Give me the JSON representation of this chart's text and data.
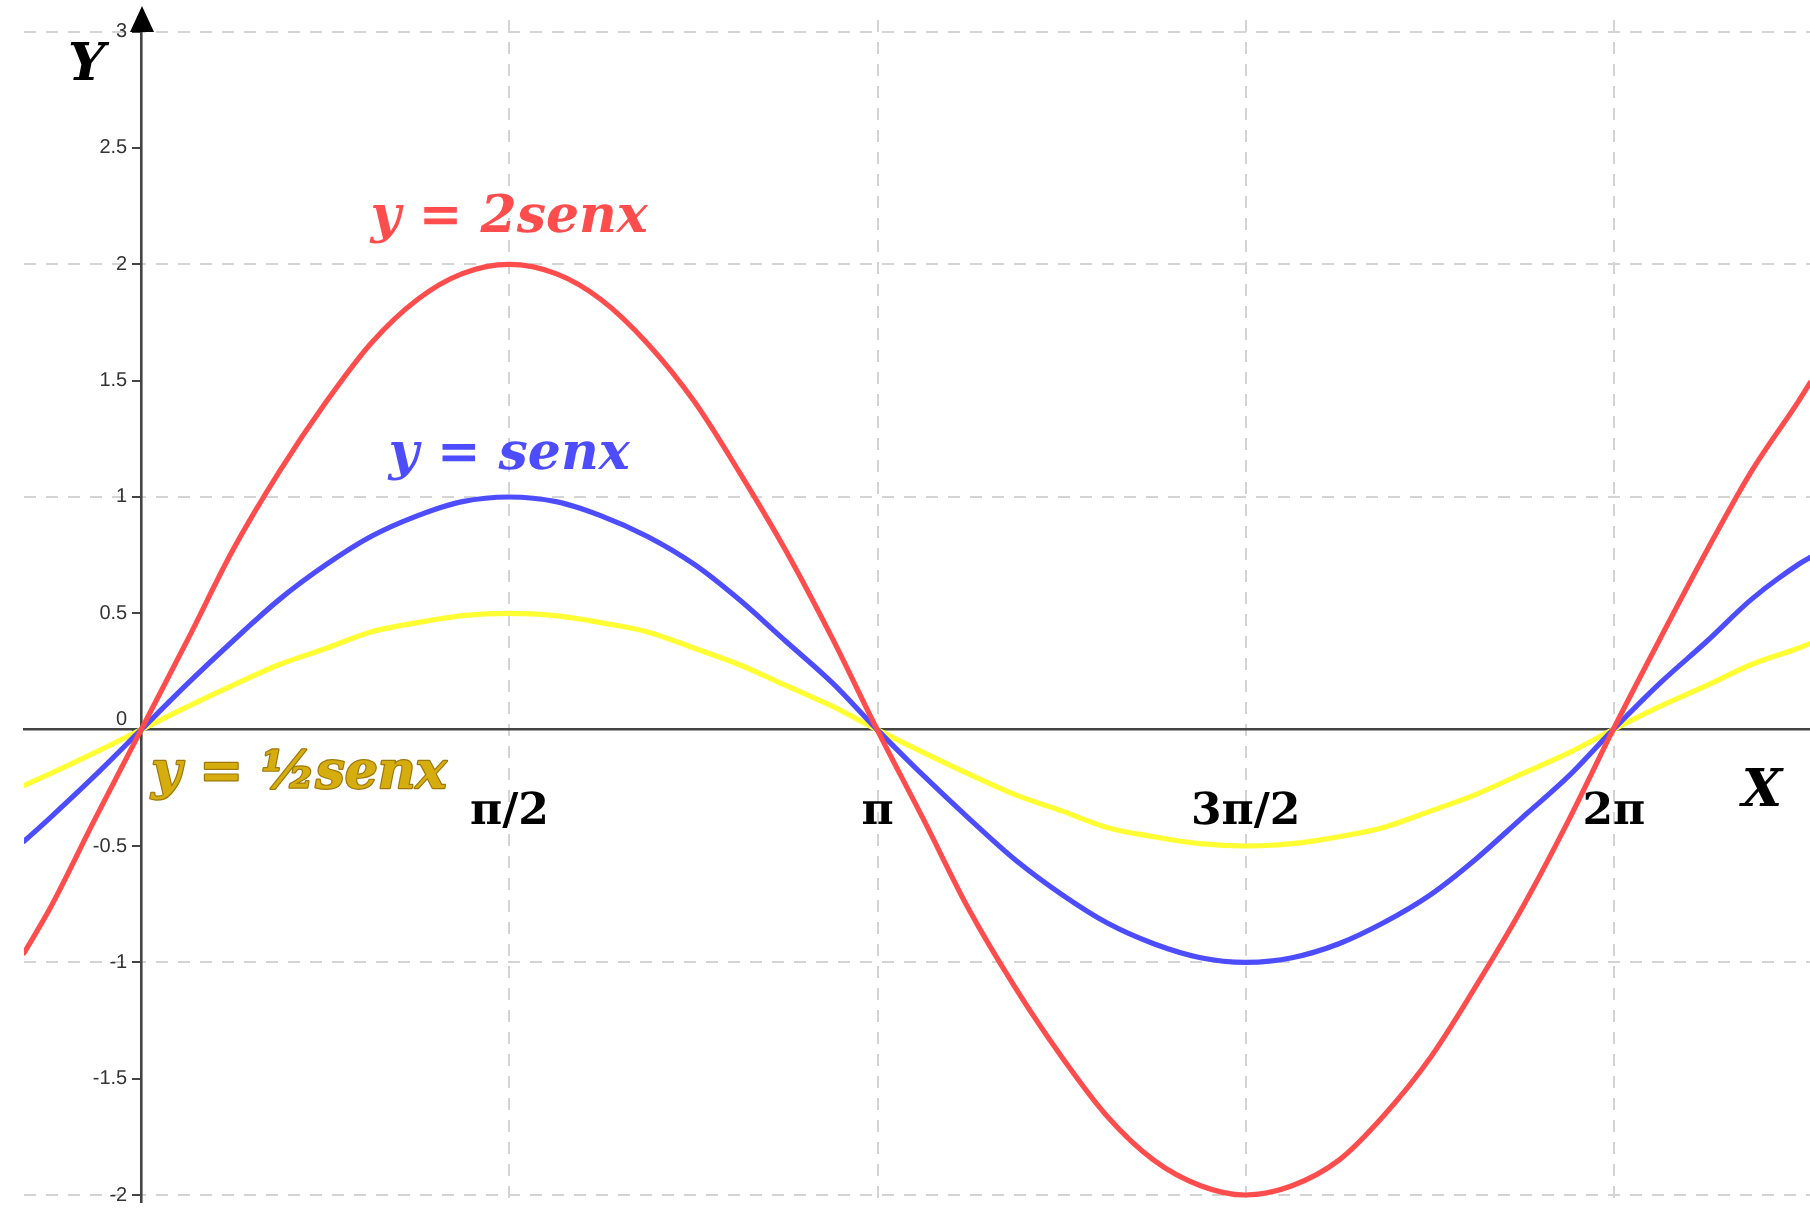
{
  "chart_data": {
    "type": "line",
    "xlabel": "X",
    "ylabel": "Y",
    "x": [
      -0.5,
      -0.39,
      -0.2,
      0,
      0.2,
      0.39,
      0.59,
      0.79,
      0.98,
      1.18,
      1.37,
      1.57,
      1.77,
      1.96,
      2.16,
      2.36,
      2.55,
      2.75,
      2.95,
      3.14,
      3.34,
      3.53,
      3.73,
      3.93,
      4.12,
      4.32,
      4.52,
      4.71,
      4.91,
      5.11,
      5.3,
      5.5,
      5.69,
      5.89,
      6.09,
      6.28,
      6.48,
      6.68,
      6.87,
      7.07,
      7.12
    ],
    "series": [
      {
        "name": "y = 2senx",
        "color": "#ff4d4d",
        "values": [
          -0.96,
          -0.77,
          -0.39,
          0,
          0.39,
          0.77,
          1.11,
          1.41,
          1.66,
          1.85,
          1.96,
          2,
          1.96,
          1.85,
          1.66,
          1.41,
          1.11,
          0.77,
          0.39,
          0,
          -0.39,
          -0.77,
          -1.11,
          -1.41,
          -1.66,
          -1.85,
          -1.96,
          -2,
          -1.96,
          -1.85,
          -1.66,
          -1.41,
          -1.11,
          -0.77,
          -0.39,
          0,
          0.39,
          0.77,
          1.11,
          1.41,
          1.49
        ]
      },
      {
        "name": "y = senx",
        "color": "#4d4dff",
        "values": [
          -0.48,
          -0.38,
          -0.2,
          0,
          0.2,
          0.38,
          0.56,
          0.71,
          0.83,
          0.92,
          0.98,
          1,
          0.98,
          0.92,
          0.83,
          0.71,
          0.56,
          0.38,
          0.2,
          0,
          -0.2,
          -0.38,
          -0.56,
          -0.71,
          -0.83,
          -0.92,
          -0.98,
          -1,
          -0.98,
          -0.92,
          -0.83,
          -0.71,
          -0.56,
          -0.38,
          -0.2,
          0,
          0.2,
          0.38,
          0.56,
          0.71,
          0.74
        ]
      },
      {
        "name": "y = ½senx",
        "color": "#ffff33",
        "values": [
          -0.24,
          -0.19,
          -0.1,
          0,
          0.1,
          0.19,
          0.28,
          0.35,
          0.42,
          0.46,
          0.49,
          0.5,
          0.49,
          0.46,
          0.42,
          0.35,
          0.28,
          0.19,
          0.1,
          0,
          -0.1,
          -0.19,
          -0.28,
          -0.35,
          -0.42,
          -0.46,
          -0.49,
          -0.5,
          -0.49,
          -0.46,
          -0.42,
          -0.35,
          -0.28,
          -0.19,
          -0.1,
          0,
          0.1,
          0.19,
          0.28,
          0.35,
          0.37
        ]
      }
    ],
    "xlim": [
      -0.5,
      7.12
    ],
    "ylim": [
      -2.03,
      3.05
    ],
    "xticks": [
      {
        "value": 1.5708,
        "label": "π/2"
      },
      {
        "value": 3.1416,
        "label": "π"
      },
      {
        "value": 4.7124,
        "label": "3π/2"
      },
      {
        "value": 6.2832,
        "label": "2π"
      }
    ],
    "yticks": [
      -2,
      -1.5,
      -1,
      -0.5,
      0,
      0.5,
      1,
      1.5,
      2,
      2.5,
      3
    ],
    "grid": true,
    "marker": "none",
    "line_style": "solid"
  }
}
